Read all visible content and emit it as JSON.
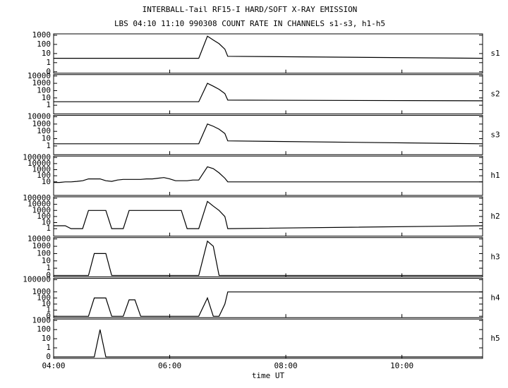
{
  "title": "INTERBALL-Tail RF15-I HARD/SOFT X-RAY EMISSION",
  "subtitle": "LBS 04:10 11:10 990308  COUNT RATE IN CHANNELS s1-s3, h1-h5",
  "xlabel": "time UT",
  "xlim": [
    4,
    11.39
  ],
  "xticks": [
    {
      "value": 4,
      "label": "04:00"
    },
    {
      "value": 6,
      "label": "06:00"
    },
    {
      "value": 8,
      "label": "08:00"
    },
    {
      "value": 10,
      "label": "10:00"
    }
  ],
  "chart_data": [
    {
      "type": "line",
      "name": "s1",
      "yscale": "log",
      "color": "#000000",
      "ylim": [
        0,
        1000
      ],
      "yticks": [
        0,
        1,
        10,
        100,
        1000
      ],
      "x": [
        4.0,
        4.1,
        4.2,
        4.3,
        4.4,
        4.5,
        4.6,
        4.7,
        4.8,
        4.9,
        5.0,
        5.1,
        5.2,
        5.3,
        5.4,
        5.5,
        5.6,
        5.7,
        5.8,
        5.9,
        6.0,
        6.1,
        6.2,
        6.3,
        6.4,
        6.5,
        6.65,
        6.75,
        6.85,
        6.95,
        7.0,
        11.39
      ],
      "values": [
        3,
        3,
        3,
        3,
        3,
        3,
        3,
        3,
        3,
        3,
        3,
        3,
        3,
        3,
        3,
        3,
        3,
        3,
        3,
        3,
        3,
        3,
        3,
        3,
        3,
        3,
        800,
        300,
        120,
        30,
        5,
        3
      ]
    },
    {
      "type": "line",
      "name": "s2",
      "yscale": "log",
      "color": "#000000",
      "ylim": [
        0,
        10000
      ],
      "yticks": [
        1,
        10,
        100,
        1000,
        10000
      ],
      "x": [
        4.0,
        4.1,
        4.2,
        4.3,
        4.4,
        4.5,
        4.6,
        4.7,
        4.8,
        4.9,
        5.0,
        5.1,
        5.2,
        5.3,
        5.4,
        5.5,
        5.6,
        5.7,
        5.8,
        5.9,
        6.0,
        6.1,
        6.2,
        6.3,
        6.4,
        6.5,
        6.65,
        6.75,
        6.85,
        6.95,
        7.0,
        11.39
      ],
      "values": [
        3,
        3,
        3,
        3,
        3,
        3,
        3,
        3,
        3,
        3,
        3,
        3,
        3,
        3,
        3,
        3,
        3,
        3,
        3,
        3,
        3,
        3,
        3,
        3,
        3,
        3,
        1000,
        400,
        150,
        40,
        5,
        4
      ]
    },
    {
      "type": "line",
      "name": "s3",
      "yscale": "log",
      "color": "#000000",
      "ylim": [
        0,
        10000
      ],
      "yticks": [
        1,
        10,
        100,
        1000,
        10000
      ],
      "x": [
        4.0,
        4.1,
        4.2,
        4.3,
        4.4,
        4.5,
        4.6,
        4.7,
        4.8,
        4.9,
        5.0,
        5.1,
        5.2,
        5.3,
        5.4,
        5.5,
        5.6,
        5.7,
        5.8,
        5.9,
        6.0,
        6.1,
        6.2,
        6.3,
        6.4,
        6.5,
        6.65,
        6.75,
        6.85,
        6.95,
        7.0,
        11.39
      ],
      "values": [
        2,
        2,
        2,
        2,
        2,
        2,
        2,
        2,
        2,
        2,
        2,
        2,
        2,
        2,
        2,
        2,
        2,
        2,
        2,
        2,
        2,
        2,
        2,
        2,
        2,
        2,
        1000,
        500,
        200,
        50,
        5,
        2
      ]
    },
    {
      "type": "line",
      "name": "h1",
      "yscale": "log",
      "color": "#000000",
      "ylim": [
        0,
        100000
      ],
      "yticks": [
        10,
        100,
        1000,
        10000,
        100000
      ],
      "x": [
        4.0,
        4.1,
        4.2,
        4.3,
        4.4,
        4.5,
        4.6,
        4.7,
        4.8,
        4.9,
        5.0,
        5.1,
        5.2,
        5.3,
        5.4,
        5.5,
        5.6,
        5.7,
        5.8,
        5.9,
        6.0,
        6.1,
        6.2,
        6.3,
        6.4,
        6.5,
        6.65,
        6.75,
        6.85,
        6.95,
        7.0,
        11.39
      ],
      "values": [
        8,
        8,
        10,
        10,
        12,
        15,
        30,
        30,
        30,
        15,
        12,
        20,
        25,
        25,
        25,
        25,
        30,
        30,
        40,
        50,
        30,
        15,
        15,
        15,
        20,
        20,
        3000,
        1500,
        300,
        40,
        10,
        10
      ]
    },
    {
      "type": "line",
      "name": "h2",
      "yscale": "log",
      "color": "#000000",
      "ylim": [
        0,
        100000
      ],
      "yticks": [
        1,
        10,
        100,
        1000,
        10000,
        100000
      ],
      "x": [
        4.0,
        4.1,
        4.2,
        4.3,
        4.4,
        4.5,
        4.6,
        4.7,
        4.8,
        4.9,
        5.0,
        5.1,
        5.2,
        5.3,
        5.4,
        5.5,
        5.6,
        5.7,
        5.8,
        5.9,
        6.0,
        6.1,
        6.2,
        6.3,
        6.4,
        6.5,
        6.65,
        6.75,
        6.85,
        6.95,
        7.0,
        11.39
      ],
      "values": [
        3,
        3,
        3,
        1,
        1,
        1,
        1000,
        1000,
        1000,
        1000,
        1,
        1,
        1,
        1000,
        1000,
        1000,
        1000,
        1000,
        1000,
        1000,
        1000,
        1000,
        1000,
        1,
        1,
        1,
        30000,
        5000,
        1000,
        100,
        1,
        3
      ]
    },
    {
      "type": "line",
      "name": "h3",
      "yscale": "log",
      "color": "#000000",
      "ylim": [
        0,
        10000
      ],
      "yticks": [
        0,
        1,
        10,
        100,
        1000,
        10000
      ],
      "x": [
        4.0,
        4.1,
        4.2,
        4.3,
        4.4,
        4.5,
        4.6,
        4.7,
        4.8,
        4.9,
        5.0,
        5.1,
        5.2,
        5.3,
        5.4,
        5.5,
        5.6,
        5.7,
        5.8,
        5.9,
        6.0,
        6.1,
        6.2,
        6.3,
        6.4,
        6.5,
        6.65,
        6.75,
        6.85,
        6.95,
        7.0,
        11.39
      ],
      "values": [
        0,
        0,
        0,
        0,
        0,
        0,
        0,
        100,
        100,
        100,
        0,
        0,
        0,
        0,
        0,
        0,
        0,
        0,
        0,
        0,
        0,
        0,
        0,
        0,
        0,
        0,
        5000,
        1000,
        0,
        0,
        0,
        0
      ]
    },
    {
      "type": "line",
      "name": "h4",
      "yscale": "log",
      "color": "#000000",
      "ylim": [
        0,
        100000
      ],
      "yticks": [
        0,
        1,
        10,
        100,
        1000,
        100000
      ],
      "x": [
        4.0,
        4.1,
        4.2,
        4.3,
        4.4,
        4.5,
        4.6,
        4.7,
        4.8,
        4.9,
        5.0,
        5.1,
        5.2,
        5.3,
        5.4,
        5.5,
        5.6,
        5.7,
        5.8,
        5.9,
        6.0,
        6.1,
        6.2,
        6.3,
        6.4,
        6.5,
        6.65,
        6.75,
        6.85,
        6.95,
        7.0,
        11.39
      ],
      "values": [
        0,
        0,
        0,
        0,
        0,
        0,
        0,
        100,
        100,
        100,
        0,
        0,
        0,
        50,
        50,
        0,
        0,
        0,
        0,
        0,
        0,
        0,
        0,
        0,
        0,
        0,
        100,
        0,
        0,
        10,
        1000,
        1000
      ]
    },
    {
      "type": "line",
      "name": "h5",
      "yscale": "log",
      "color": "#000000",
      "ylim": [
        0,
        1000
      ],
      "yticks": [
        0,
        1,
        10,
        100,
        1000
      ],
      "x": [
        4.0,
        4.1,
        4.2,
        4.3,
        4.4,
        4.5,
        4.6,
        4.7,
        4.8,
        4.9,
        5.0,
        5.1,
        5.2,
        5.3,
        5.4,
        5.5,
        5.6,
        5.7,
        5.8,
        5.9,
        6.0,
        6.1,
        6.2,
        6.3,
        6.4,
        6.5,
        6.65,
        6.75,
        6.85,
        6.95,
        7.0,
        11.39
      ],
      "values": [
        0,
        0,
        0,
        0,
        0,
        0,
        0,
        0,
        100,
        0,
        0,
        0,
        0,
        0,
        0,
        0,
        0,
        0,
        0,
        0,
        0,
        0,
        0,
        0,
        0,
        0,
        0,
        0,
        0,
        0,
        0,
        0
      ]
    }
  ]
}
